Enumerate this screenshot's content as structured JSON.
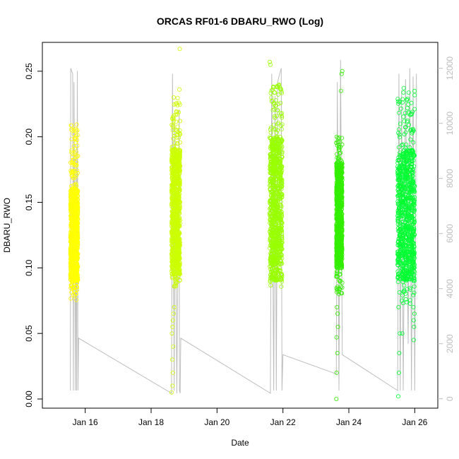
{
  "chart_data": {
    "type": "scatter",
    "title": "ORCAS RF01-6 DBARU_RWO (Log)",
    "xlabel": "Date",
    "ylabel": "DBARU_RWO",
    "x_ticks": [
      "Jan 16",
      "Jan 18",
      "Jan 20",
      "Jan 22",
      "Jan 24",
      "Jan 26"
    ],
    "x_tick_days": [
      16,
      18,
      20,
      22,
      24,
      26
    ],
    "xlim_days": [
      14.7,
      26.7
    ],
    "y_ticks": [
      0.0,
      0.05,
      0.1,
      0.15,
      0.2,
      0.25
    ],
    "y_tick_labels": [
      "0.00",
      "0.05",
      "0.10",
      "0.15",
      "0.20",
      "0.25"
    ],
    "ylim": [
      -0.007,
      0.272
    ],
    "y2_ticks": [
      0,
      2000,
      4000,
      6000,
      8000,
      10000,
      12000
    ],
    "y2_tick_labels": [
      "0",
      "2000",
      "4000",
      "6000",
      "8000",
      "10000",
      "12000"
    ],
    "y2lim": [
      -340,
      12940
    ],
    "colors": {
      "rf01": "#ffff00",
      "rf02": "#ccff00",
      "rf03": "#99ff00",
      "rf04": "#33ee00",
      "rf05": "#00ff33",
      "altitude_line": "#bdbdbd"
    },
    "series": [
      {
        "color_key": "rf01",
        "day_start": 15.55,
        "day_end": 15.78,
        "y_low": 0.075,
        "y_high": 0.21,
        "y_core_low": 0.09,
        "y_core_high": 0.16,
        "outliers": []
      },
      {
        "color_key": "rf02",
        "day_start": 18.62,
        "day_end": 18.88,
        "y_low": 0.085,
        "y_high": 0.23,
        "y_core_low": 0.095,
        "y_core_high": 0.19,
        "outliers": [
          [
            18.62,
            0.005
          ],
          [
            18.65,
            0.01
          ],
          [
            18.66,
            0.02
          ],
          [
            18.64,
            0.03
          ],
          [
            18.67,
            0.04
          ],
          [
            18.63,
            0.05
          ],
          [
            18.65,
            0.055
          ],
          [
            18.66,
            0.06
          ],
          [
            18.68,
            0.065
          ],
          [
            18.7,
            0.07
          ],
          [
            18.86,
            0.236
          ],
          [
            18.87,
            0.267
          ]
        ]
      },
      {
        "color_key": "rf03",
        "day_start": 21.6,
        "day_end": 21.98,
        "y_low": 0.085,
        "y_high": 0.24,
        "y_core_low": 0.09,
        "y_core_high": 0.2,
        "outliers": [
          [
            21.6,
            0.257
          ],
          [
            21.62,
            0.255
          ]
        ]
      },
      {
        "color_key": "rf04",
        "day_start": 23.62,
        "day_end": 23.8,
        "y_low": 0.08,
        "y_high": 0.2,
        "y_core_low": 0.1,
        "y_core_high": 0.18,
        "outliers": [
          [
            23.62,
            0.0
          ],
          [
            23.63,
            0.02
          ],
          [
            23.65,
            0.035
          ],
          [
            23.63,
            0.047
          ],
          [
            23.67,
            0.055
          ],
          [
            23.66,
            0.065
          ],
          [
            23.64,
            0.07
          ],
          [
            23.7,
            0.08
          ],
          [
            23.75,
            0.135
          ],
          [
            23.76,
            0.235
          ],
          [
            23.78,
            0.248
          ],
          [
            23.8,
            0.25
          ]
        ]
      },
      {
        "color_key": "rf05",
        "day_start": 25.48,
        "day_end": 26.0,
        "y_low": 0.07,
        "y_high": 0.24,
        "y_core_low": 0.09,
        "y_core_high": 0.19,
        "outliers": [
          [
            25.5,
            0.002
          ],
          [
            25.52,
            0.02
          ],
          [
            25.53,
            0.035
          ],
          [
            25.55,
            0.05
          ],
          [
            25.62,
            0.05
          ],
          [
            25.97,
            0.045
          ],
          [
            25.98,
            0.055
          ],
          [
            25.97,
            0.06
          ],
          [
            25.99,
            0.065
          ],
          [
            25.96,
            0.07
          ]
        ]
      }
    ],
    "altitude_path": [
      [
        15.55,
        300
      ],
      [
        15.56,
        12000
      ],
      [
        15.62,
        11800
      ],
      [
        15.64,
        300
      ],
      [
        15.66,
        11500
      ],
      [
        15.7,
        300
      ],
      [
        15.72,
        9000
      ],
      [
        15.74,
        300
      ],
      [
        15.76,
        11900
      ],
      [
        15.78,
        300
      ],
      [
        15.8,
        2200
      ],
      [
        18.62,
        200
      ],
      [
        18.65,
        11800
      ],
      [
        18.7,
        300
      ],
      [
        18.72,
        10000
      ],
      [
        18.78,
        200
      ],
      [
        18.85,
        10500
      ],
      [
        18.86,
        300
      ],
      [
        18.88,
        200
      ],
      [
        18.9,
        2200
      ],
      [
        21.62,
        200
      ],
      [
        21.66,
        11800
      ],
      [
        21.72,
        300
      ],
      [
        21.76,
        11000
      ],
      [
        21.8,
        300
      ],
      [
        21.84,
        11500
      ],
      [
        21.9,
        11800
      ],
      [
        21.95,
        12000
      ],
      [
        21.97,
        300
      ],
      [
        22.0,
        1600
      ],
      [
        23.62,
        900
      ],
      [
        23.65,
        11500
      ],
      [
        23.7,
        300
      ],
      [
        23.75,
        12300
      ],
      [
        23.8,
        1600
      ],
      [
        25.48,
        300
      ],
      [
        25.52,
        11800
      ],
      [
        25.56,
        300
      ],
      [
        25.6,
        11200
      ],
      [
        25.65,
        300
      ],
      [
        25.72,
        11600
      ],
      [
        25.8,
        2000
      ],
      [
        25.85,
        12000
      ],
      [
        25.9,
        300
      ],
      [
        25.95,
        11700
      ],
      [
        26.0,
        300
      ],
      [
        26.05,
        11800
      ]
    ]
  }
}
